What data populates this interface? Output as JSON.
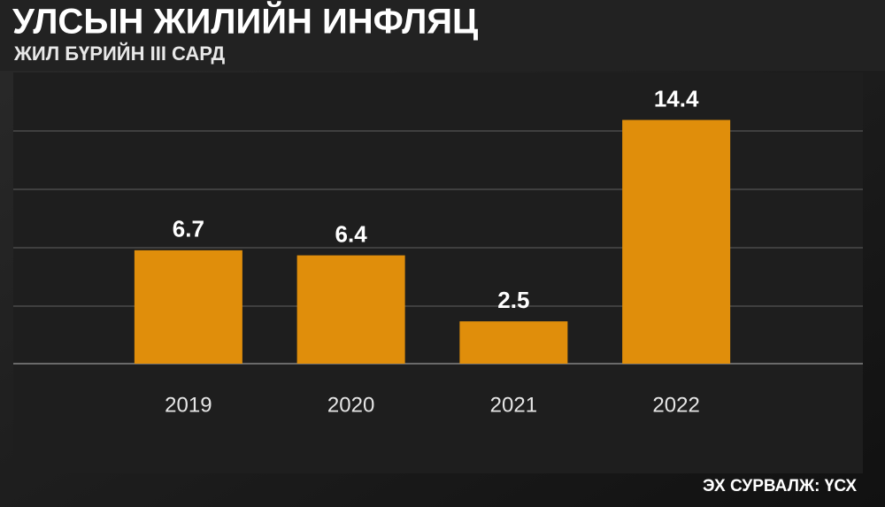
{
  "chart_data": {
    "type": "bar",
    "title": "УЛСЫН ЖИЛИЙН ИНФЛЯЦ",
    "subtitle": "ЖИЛ БҮРИЙН III САРД",
    "source": "ЭХ СУРВАЛЖ: ҮСХ",
    "categories": [
      "2019",
      "2020",
      "2021",
      "2022"
    ],
    "values": [
      6.7,
      6.4,
      2.5,
      14.4
    ],
    "color": "#e08e0b",
    "ylim": [
      0,
      17.2
    ]
  }
}
